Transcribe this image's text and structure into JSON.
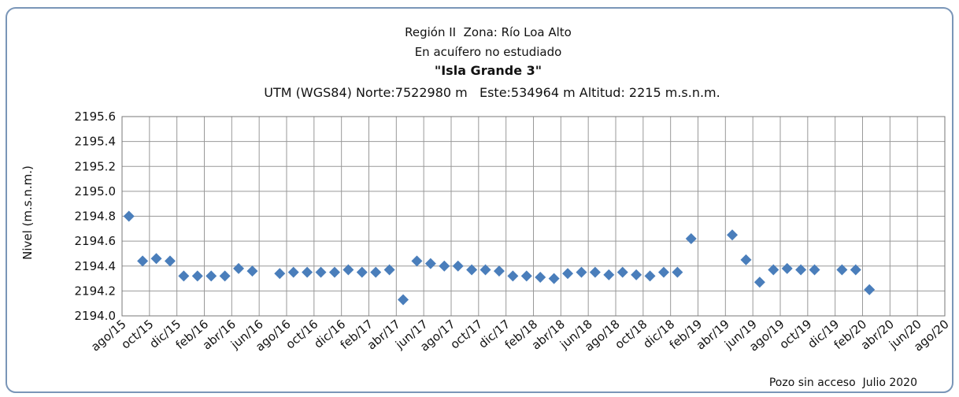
{
  "chart_data": {
    "type": "scatter",
    "title": "Región II  Zona: Río Loa Alto",
    "subtitle": "En acuífero no estudiado",
    "well_name": "\"Isla Grande 3\"",
    "location": "UTM (WGS84) Norte:7522980 m   Este:534964 m Altitud: 2215 m.s.n.m.",
    "y_label": "Nivel (m.s.n.m.)",
    "note": "Pozo sin acceso  Julio 2020",
    "categories": [
      "ago/15",
      null,
      "oct/15",
      null,
      "dic/15",
      null,
      "feb/16",
      null,
      "abr/16",
      null,
      "jun/16",
      null,
      "ago/16",
      null,
      "oct/16",
      null,
      "dic/16",
      null,
      "feb/17",
      null,
      "abr/17",
      null,
      "jun/17",
      null,
      "ago/17",
      null,
      "oct/17",
      null,
      "dic/17",
      null,
      "feb/18",
      null,
      "abr/18",
      null,
      "jun/18",
      null,
      "ago/18",
      null,
      "oct/18",
      null,
      "dic/18",
      null,
      "feb/19",
      null,
      "abr/19",
      null,
      "jun/19",
      null,
      "ago/19",
      null,
      "oct/19",
      null,
      "dic/19",
      null,
      "feb/20",
      null,
      "abr/20",
      null,
      "jun/20",
      null,
      "ago/20"
    ],
    "values": [
      2194.8,
      2194.44,
      2194.46,
      2194.44,
      2194.32,
      2194.32,
      2194.32,
      2194.32,
      2194.38,
      2194.36,
      null,
      2194.34,
      2194.35,
      2194.35,
      2194.35,
      2194.35,
      2194.37,
      2194.35,
      2194.35,
      2194.37,
      2194.13,
      2194.44,
      2194.42,
      2194.4,
      2194.4,
      2194.37,
      2194.37,
      2194.36,
      2194.32,
      2194.32,
      2194.31,
      2194.3,
      2194.34,
      2194.35,
      2194.35,
      2194.33,
      2194.35,
      2194.33,
      2194.32,
      2194.35,
      2194.35,
      2194.62,
      null,
      null,
      2194.65,
      2194.45,
      2194.27,
      2194.37,
      2194.38,
      2194.37,
      2194.37,
      null,
      2194.37,
      2194.37,
      2194.21,
      null,
      null,
      null,
      null,
      null,
      null
    ],
    "color": "#4a7ebb",
    "ylim": [
      2194.0,
      2195.6
    ],
    "yticks": [
      {
        "value": 2194.0,
        "label": "2194.0"
      },
      2194.2,
      2194.4,
      2194.6,
      2194.8,
      {
        "value": 2195.0,
        "label": "2195.0"
      },
      2195.2,
      2195.4,
      2195.6
    ],
    "grid": true
  }
}
